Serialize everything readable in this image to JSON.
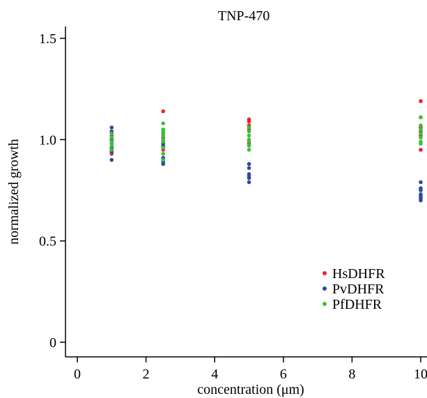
{
  "chart_data": {
    "type": "scatter",
    "title": "TNP-470",
    "xlabel": "concentration (μm)",
    "ylabel": "normalized growth",
    "xlim": [
      -0.6,
      10.4
    ],
    "ylim": [
      -0.05,
      1.55
    ],
    "xticks": [
      0,
      2,
      4,
      6,
      8,
      10
    ],
    "yticks": [
      0,
      0.5,
      1.0,
      1.5
    ],
    "ytick_labels": [
      "0",
      "0.5",
      "1.0",
      "1.5"
    ],
    "legend_position": "bottom-right",
    "grid": false,
    "series": [
      {
        "name": "HsDHFR",
        "color": "#e8222a",
        "points": [
          [
            1,
            1.04
          ],
          [
            1,
            1.02
          ],
          [
            1,
            1.0
          ],
          [
            1,
            0.98
          ],
          [
            1,
            0.96
          ],
          [
            1,
            0.94
          ],
          [
            1,
            0.93
          ],
          [
            2.5,
            1.14
          ],
          [
            2.5,
            1.03
          ],
          [
            2.5,
            1.01
          ],
          [
            2.5,
            0.99
          ],
          [
            2.5,
            0.97
          ],
          [
            2.5,
            0.95
          ],
          [
            5,
            1.1
          ],
          [
            5,
            1.09
          ],
          [
            5,
            1.07
          ],
          [
            5,
            1.05
          ],
          [
            5,
            1.0
          ],
          [
            5,
            0.98
          ],
          [
            10,
            1.19
          ],
          [
            10,
            1.11
          ],
          [
            10,
            1.06
          ],
          [
            10,
            1.04
          ],
          [
            10,
            1.02
          ],
          [
            10,
            0.95
          ]
        ]
      },
      {
        "name": "PvDHFR",
        "color": "#2e4a9e",
        "points": [
          [
            1,
            1.06
          ],
          [
            1,
            1.04
          ],
          [
            1,
            1.0
          ],
          [
            1,
            0.96
          ],
          [
            1,
            0.95
          ],
          [
            1,
            0.94
          ],
          [
            1,
            0.9
          ],
          [
            2.5,
            0.98
          ],
          [
            2.5,
            0.97
          ],
          [
            2.5,
            0.91
          ],
          [
            2.5,
            0.89
          ],
          [
            2.5,
            0.88
          ],
          [
            5,
            0.88
          ],
          [
            5,
            0.86
          ],
          [
            5,
            0.83
          ],
          [
            5,
            0.82
          ],
          [
            5,
            0.81
          ],
          [
            5,
            0.79
          ],
          [
            10,
            0.79
          ],
          [
            10,
            0.76
          ],
          [
            10,
            0.75
          ],
          [
            10,
            0.73
          ],
          [
            10,
            0.72
          ],
          [
            10,
            0.71
          ],
          [
            10,
            0.7
          ]
        ]
      },
      {
        "name": "PfDHFR",
        "color": "#3bbf3b",
        "points": [
          [
            1,
            1.03
          ],
          [
            1,
            1.01
          ],
          [
            1,
            0.99
          ],
          [
            1,
            0.98
          ],
          [
            1,
            0.97
          ],
          [
            1,
            0.95
          ],
          [
            2.5,
            1.08
          ],
          [
            2.5,
            1.05
          ],
          [
            2.5,
            1.04
          ],
          [
            2.5,
            1.03
          ],
          [
            2.5,
            1.02
          ],
          [
            2.5,
            1.0
          ],
          [
            2.5,
            0.99
          ],
          [
            2.5,
            0.96
          ],
          [
            2.5,
            0.93
          ],
          [
            2.5,
            0.9
          ],
          [
            5,
            1.06
          ],
          [
            5,
            1.04
          ],
          [
            5,
            1.02
          ],
          [
            5,
            1.0
          ],
          [
            5,
            0.99
          ],
          [
            5,
            0.97
          ],
          [
            5,
            0.95
          ],
          [
            10,
            1.11
          ],
          [
            10,
            1.07
          ],
          [
            10,
            1.05
          ],
          [
            10,
            1.03
          ],
          [
            10,
            1.01
          ],
          [
            10,
            0.99
          ],
          [
            10,
            0.98
          ]
        ]
      }
    ]
  }
}
